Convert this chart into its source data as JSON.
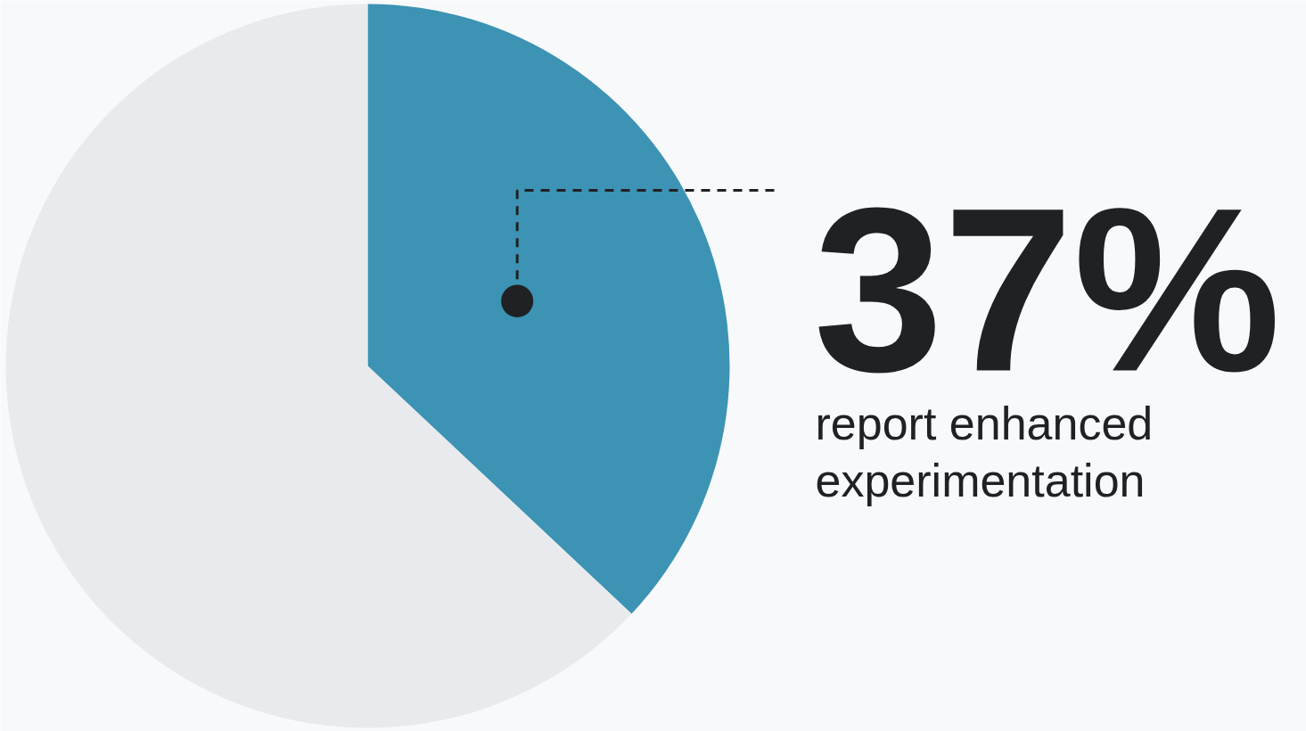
{
  "chart_data": {
    "type": "pie",
    "categories": [
      "report enhanced experimentation",
      null
    ],
    "values": [
      37,
      63
    ],
    "colors": [
      "#3c93b4",
      "#e8eaed"
    ],
    "value_labels": [
      "37%",
      null
    ]
  }
}
